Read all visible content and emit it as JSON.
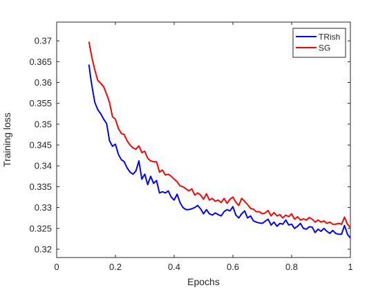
{
  "chart_data": {
    "type": "line",
    "title": "",
    "xlabel": "Epochs",
    "ylabel": "Training loss",
    "xlim": [
      0,
      1
    ],
    "ylim": [
      0.318,
      0.3745
    ],
    "xticks": [
      0,
      0.2,
      0.4,
      0.6,
      0.8,
      1
    ],
    "xtick_labels": [
      "0",
      "0.2",
      "0.4",
      "0.6",
      "0.8",
      "1"
    ],
    "yticks": [
      0.32,
      0.325,
      0.33,
      0.335,
      0.34,
      0.345,
      0.35,
      0.355,
      0.36,
      0.365,
      0.37
    ],
    "ytick_labels": [
      "0.32",
      "0.325",
      "0.33",
      "0.335",
      "0.34",
      "0.345",
      "0.35",
      "0.355",
      "0.36",
      "0.365",
      "0.37"
    ],
    "grid": false,
    "legend": {
      "placement": "top-right",
      "entries": [
        "TRish",
        "SG"
      ]
    },
    "series": [
      {
        "name": "TRish",
        "color": "#0000ff",
        "x": [
          0.11,
          0.115,
          0.12,
          0.13,
          0.14,
          0.15,
          0.16,
          0.17,
          0.18,
          0.19,
          0.2,
          0.21,
          0.22,
          0.23,
          0.24,
          0.25,
          0.26,
          0.27,
          0.28,
          0.29,
          0.3,
          0.31,
          0.32,
          0.33,
          0.34,
          0.35,
          0.36,
          0.37,
          0.38,
          0.39,
          0.4,
          0.41,
          0.42,
          0.43,
          0.44,
          0.45,
          0.46,
          0.47,
          0.48,
          0.49,
          0.5,
          0.51,
          0.52,
          0.53,
          0.54,
          0.55,
          0.56,
          0.57,
          0.58,
          0.59,
          0.6,
          0.61,
          0.62,
          0.63,
          0.64,
          0.65,
          0.66,
          0.67,
          0.68,
          0.69,
          0.7,
          0.71,
          0.72,
          0.73,
          0.74,
          0.75,
          0.76,
          0.77,
          0.78,
          0.79,
          0.8,
          0.81,
          0.82,
          0.83,
          0.84,
          0.85,
          0.86,
          0.87,
          0.88,
          0.89,
          0.9,
          0.91,
          0.92,
          0.93,
          0.94,
          0.95,
          0.96,
          0.97,
          0.98,
          0.99,
          1.0
        ],
        "y": [
          0.3643,
          0.3615,
          0.3592,
          0.3552,
          0.3535,
          0.3525,
          0.3512,
          0.3502,
          0.346,
          0.3447,
          0.3452,
          0.3428,
          0.3415,
          0.341,
          0.3395,
          0.3385,
          0.338,
          0.3388,
          0.3412,
          0.3368,
          0.338,
          0.3355,
          0.3375,
          0.3358,
          0.3365,
          0.3335,
          0.3338,
          0.3335,
          0.334,
          0.3325,
          0.3318,
          0.3332,
          0.3312,
          0.33,
          0.3295,
          0.3295,
          0.3297,
          0.33,
          0.3305,
          0.3297,
          0.3285,
          0.3295,
          0.3285,
          0.3282,
          0.3287,
          0.3283,
          0.328,
          0.329,
          0.3295,
          0.3292,
          0.3302,
          0.3282,
          0.3275,
          0.3285,
          0.3292,
          0.3275,
          0.328,
          0.3268,
          0.3265,
          0.3263,
          0.3262,
          0.3267,
          0.3272,
          0.3258,
          0.3265,
          0.3255,
          0.3262,
          0.326,
          0.327,
          0.3258,
          0.326,
          0.325,
          0.3255,
          0.3262,
          0.325,
          0.3248,
          0.3254,
          0.3253,
          0.324,
          0.3248,
          0.3243,
          0.325,
          0.3243,
          0.3238,
          0.3245,
          0.3238,
          0.3236,
          0.3236,
          0.3257,
          0.3236,
          0.3227
        ]
      },
      {
        "name": "SG",
        "color": "#ff0000",
        "x": [
          0.11,
          0.115,
          0.12,
          0.13,
          0.14,
          0.15,
          0.16,
          0.17,
          0.18,
          0.19,
          0.2,
          0.21,
          0.22,
          0.23,
          0.24,
          0.25,
          0.26,
          0.27,
          0.28,
          0.29,
          0.3,
          0.31,
          0.32,
          0.33,
          0.34,
          0.35,
          0.36,
          0.37,
          0.38,
          0.39,
          0.4,
          0.41,
          0.42,
          0.43,
          0.44,
          0.45,
          0.46,
          0.47,
          0.48,
          0.49,
          0.5,
          0.51,
          0.52,
          0.53,
          0.54,
          0.55,
          0.56,
          0.57,
          0.58,
          0.59,
          0.6,
          0.61,
          0.62,
          0.63,
          0.64,
          0.65,
          0.66,
          0.67,
          0.68,
          0.69,
          0.7,
          0.71,
          0.72,
          0.73,
          0.74,
          0.75,
          0.76,
          0.77,
          0.78,
          0.79,
          0.8,
          0.81,
          0.82,
          0.83,
          0.84,
          0.85,
          0.86,
          0.87,
          0.88,
          0.89,
          0.9,
          0.91,
          0.92,
          0.93,
          0.94,
          0.95,
          0.96,
          0.97,
          0.98,
          0.99,
          1.0
        ],
        "y": [
          0.3698,
          0.3678,
          0.366,
          0.363,
          0.3605,
          0.3598,
          0.359,
          0.3572,
          0.3552,
          0.3518,
          0.3512,
          0.349,
          0.3478,
          0.3475,
          0.346,
          0.345,
          0.3443,
          0.344,
          0.3448,
          0.3432,
          0.3435,
          0.3418,
          0.3412,
          0.341,
          0.341,
          0.3385,
          0.339,
          0.3378,
          0.338,
          0.3375,
          0.3368,
          0.3362,
          0.3352,
          0.335,
          0.3345,
          0.334,
          0.3345,
          0.333,
          0.3335,
          0.333,
          0.332,
          0.3333,
          0.3318,
          0.3322,
          0.3315,
          0.3318,
          0.3312,
          0.3322,
          0.331,
          0.332,
          0.3325,
          0.3313,
          0.3305,
          0.3322,
          0.3315,
          0.3307,
          0.3298,
          0.3296,
          0.329,
          0.329,
          0.3285,
          0.3287,
          0.3293,
          0.328,
          0.3288,
          0.328,
          0.3283,
          0.3275,
          0.3282,
          0.3278,
          0.3285,
          0.3272,
          0.3278,
          0.327,
          0.3273,
          0.327,
          0.3276,
          0.3272,
          0.3265,
          0.327,
          0.3265,
          0.3268,
          0.3262,
          0.3265,
          0.326,
          0.326,
          0.3262,
          0.326,
          0.3277,
          0.326,
          0.3252
        ]
      }
    ]
  }
}
